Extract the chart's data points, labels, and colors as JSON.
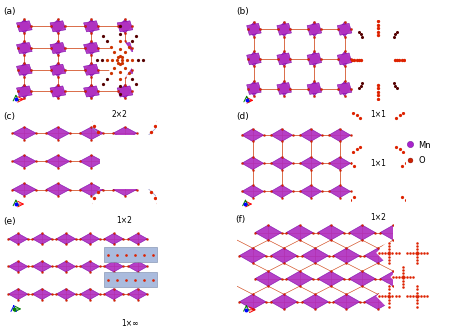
{
  "bg_color": "#ffffff",
  "panel_bg": "#e8eaf5",
  "inset_bg": "#7080b8",
  "mn_color": "#b030c0",
  "mn_edge": "#7700aa",
  "o_color": "#dd2200",
  "o_edge": "#990000",
  "line_color": "#cc3300",
  "poly_edge": "#cc3300",
  "white": "#ffffff",
  "legend_mn": "#aa22cc",
  "legend_o": "#cc2200",
  "label_fs": 6.5,
  "sub_fs": 5.5,
  "leg_fs": 6.0,
  "figsize": [
    4.74,
    3.29
  ],
  "dpi": 100,
  "sublabels": {
    "a": "2×2",
    "b": "1×1",
    "c": "1×2",
    "d1": "1×1",
    "d2": "1×2",
    "e": "1×∞"
  }
}
